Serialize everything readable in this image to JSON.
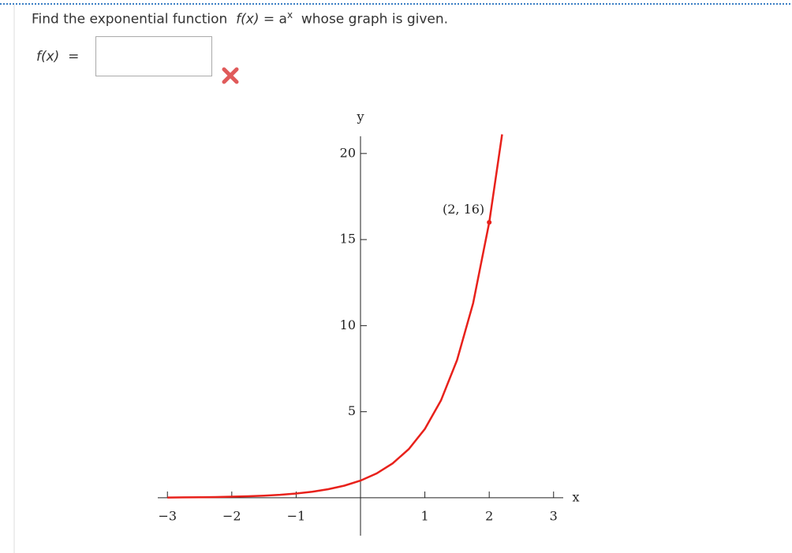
{
  "question": {
    "before": "Find the exponential function",
    "function": "f(x)",
    "equals": "=",
    "base": "a",
    "exponent": "x",
    "after": "whose graph is given."
  },
  "answer": {
    "label": "f(x)",
    "equals": "="
  },
  "chart_data": {
    "type": "line",
    "xlabel": "x",
    "ylabel": "y",
    "xlim": [
      -3.15,
      3.15
    ],
    "ylim": [
      -2.2,
      21
    ],
    "xticks": [
      {
        "value": -3,
        "label": "−3"
      },
      {
        "value": -2,
        "label": "−2"
      },
      {
        "value": -1,
        "label": "−1"
      },
      1,
      2,
      3
    ],
    "yticks": [
      5,
      10,
      15,
      20
    ],
    "series": [
      {
        "color": "#e8211b",
        "x": [
          -3,
          -2.75,
          -2.5,
          -2.25,
          -2,
          -1.75,
          -1.5,
          -1.25,
          -1,
          -0.75,
          -0.5,
          -0.25,
          0,
          0.25,
          0.5,
          0.75,
          1,
          1.25,
          1.5,
          1.75,
          2,
          2.2
        ],
        "values": [
          0.016,
          0.022,
          0.031,
          0.044,
          0.063,
          0.088,
          0.125,
          0.177,
          0.25,
          0.354,
          0.5,
          0.707,
          1,
          1.414,
          2,
          2.828,
          4,
          5.657,
          8,
          11.31,
          16,
          21.11
        ]
      }
    ],
    "annotations": [
      {
        "text": "(2, 16)",
        "x": 2,
        "y": 16
      }
    ]
  }
}
